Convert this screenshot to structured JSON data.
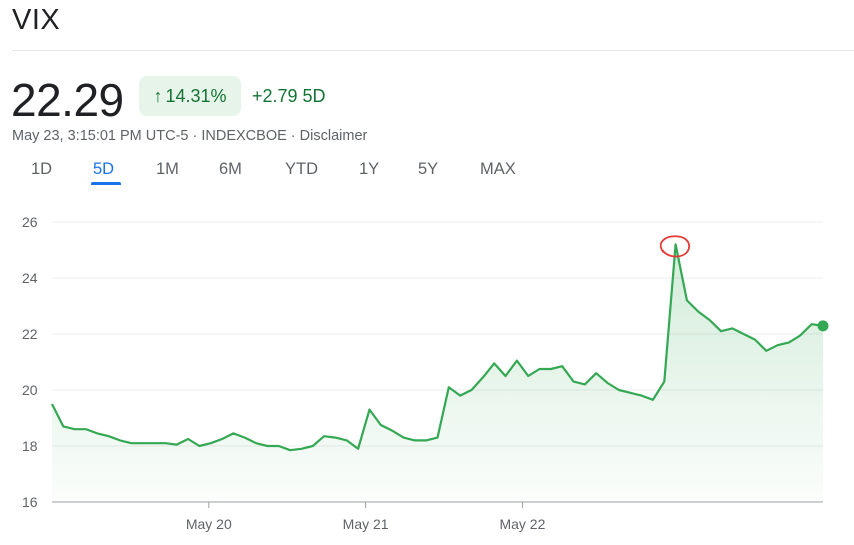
{
  "header": {
    "ticker": "VIX",
    "price": "22.29",
    "pct_change": "14.31%",
    "abs_change": "+2.79 5D",
    "meta": "May 23, 3:15:01 PM UTC-5 · INDEXCBOE · Disclaimer"
  },
  "tabs": [
    "1D",
    "5D",
    "1M",
    "6M",
    "YTD",
    "1Y",
    "5Y",
    "MAX"
  ],
  "active_tab": "5D",
  "colors": {
    "line": "#34a853",
    "positive_text": "#137333",
    "badge_bg": "#e6f4ea",
    "active_tab": "#1a73e8",
    "annotation": "#e53935"
  },
  "chart_data": {
    "type": "area",
    "y_ticks": [
      16,
      18,
      20,
      22,
      24,
      26
    ],
    "ylim": [
      16,
      26
    ],
    "x_labels": [
      {
        "label": "May 20",
        "x": 12
      },
      {
        "label": "May 21",
        "x": 24
      },
      {
        "label": "May 22",
        "x": 36
      }
    ],
    "xlim": [
      0,
      59
    ],
    "values": [
      19.5,
      18.7,
      18.6,
      18.6,
      18.45,
      18.35,
      18.2,
      18.1,
      18.1,
      18.1,
      18.1,
      18.05,
      18.25,
      18.0,
      18.1,
      18.25,
      18.45,
      18.3,
      18.1,
      18.0,
      18.0,
      17.85,
      17.9,
      18.0,
      18.35,
      18.3,
      18.2,
      17.9,
      19.3,
      18.75,
      18.55,
      18.3,
      18.2,
      18.2,
      18.3,
      20.1,
      19.8,
      20.0,
      20.45,
      20.95,
      20.5,
      21.05,
      20.5,
      20.75,
      20.75,
      20.85,
      20.3,
      20.2,
      20.6,
      20.25,
      20.0,
      19.9,
      19.8,
      19.65,
      20.3,
      25.2,
      23.2,
      22.8,
      22.5,
      22.1,
      22.2,
      22.0,
      21.8,
      21.4,
      21.6,
      21.7,
      21.95,
      22.35,
      22.29
    ],
    "last_value": 22.29
  }
}
